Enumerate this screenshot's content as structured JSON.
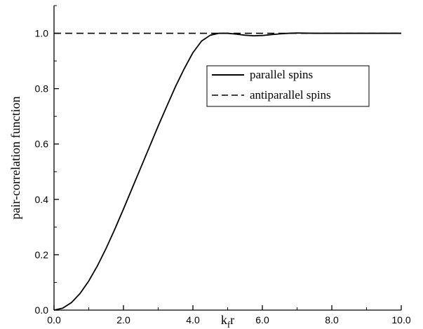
{
  "chart_data": {
    "type": "line",
    "xlabel": "k",
    "xlabel_sub": "f",
    "xlabel_suffix": "r",
    "ylabel": "pair-correlation function",
    "xlim": [
      0,
      10
    ],
    "ylim": [
      0,
      1.1
    ],
    "xticks": [
      0,
      2,
      4,
      6,
      8,
      10
    ],
    "xtick_labels": [
      "0.0",
      "2.0",
      "4.0",
      "6.0",
      "8.0",
      "10.0"
    ],
    "yticks": [
      0,
      0.2,
      0.4,
      0.6,
      0.8,
      1.0
    ],
    "ytick_labels": [
      "0.0",
      "0.2",
      "0.4",
      "0.6",
      "0.8",
      "1.0"
    ],
    "grid": false,
    "legend_position": "upper-right",
    "series": [
      {
        "name": "parallel spins",
        "style": "solid",
        "x": [
          0.0,
          0.25,
          0.5,
          0.75,
          1.0,
          1.25,
          1.5,
          1.75,
          2.0,
          2.25,
          2.5,
          2.75,
          3.0,
          3.25,
          3.5,
          3.75,
          4.0,
          4.25,
          4.5,
          4.75,
          5.0,
          5.25,
          5.5,
          5.75,
          6.0,
          6.25,
          6.5,
          6.75,
          7.0,
          7.5,
          8.0,
          8.5,
          9.0,
          9.5,
          10.0
        ],
        "y": [
          0.0,
          0.007,
          0.027,
          0.06,
          0.105,
          0.16,
          0.223,
          0.292,
          0.365,
          0.44,
          0.515,
          0.59,
          0.665,
          0.737,
          0.808,
          0.872,
          0.93,
          0.972,
          0.993,
          1.0,
          1.0,
          0.997,
          0.993,
          0.991,
          0.992,
          0.995,
          0.998,
          1.0,
          1.001,
          1.0,
          1.0,
          1.0,
          1.0,
          1.0,
          1.0
        ]
      },
      {
        "name": "antiparallel spins",
        "style": "dashed",
        "x": [
          0.0,
          10.0
        ],
        "y": [
          1.0,
          1.0
        ]
      }
    ]
  }
}
